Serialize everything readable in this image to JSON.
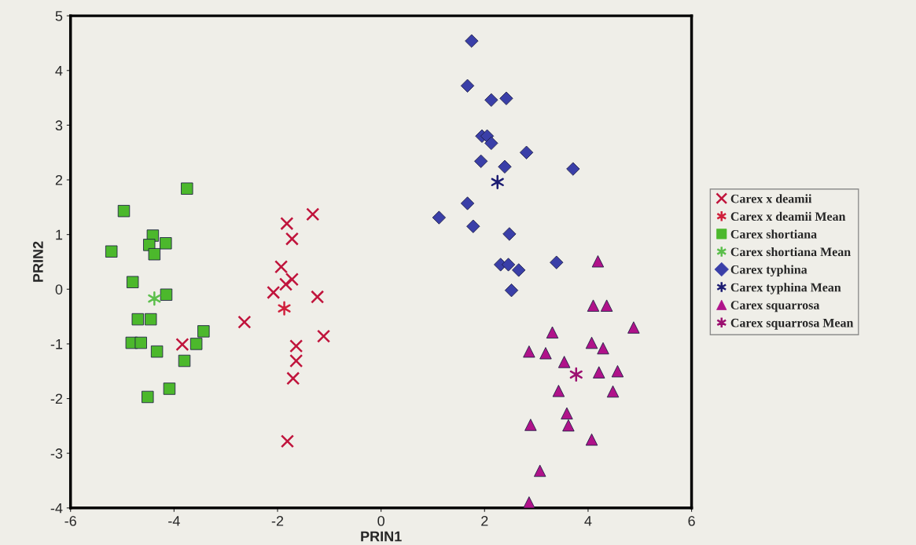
{
  "chart_data": {
    "type": "scatter",
    "xlabel": "PRIN1",
    "ylabel": "PRIN2",
    "xlim": [
      -6,
      6
    ],
    "ylim": [
      -4,
      5
    ],
    "xticks": [
      -6,
      -4,
      -2,
      0,
      2,
      4,
      6
    ],
    "yticks": [
      -4,
      -3,
      -2,
      -1,
      0,
      1,
      2,
      3,
      4,
      5
    ],
    "grid": false,
    "legend": "right",
    "series": [
      {
        "name": "Carex x deamii",
        "color": "#c0143c",
        "marker": "cross",
        "x": [
          -1.32,
          -1.82,
          -1.72,
          -1.93,
          -1.72,
          -1.84,
          -2.08,
          -1.23,
          -2.64,
          -1.11,
          -3.84,
          -1.64,
          -1.64,
          -1.7,
          -1.81
        ],
        "values": [
          1.37,
          1.2,
          0.92,
          0.41,
          0.18,
          0.09,
          -0.06,
          -0.14,
          -0.6,
          -0.86,
          -1.01,
          -1.04,
          -1.31,
          -1.63,
          -2.78
        ]
      },
      {
        "name": "Carex x deamii Mean",
        "color": "#d0203c",
        "x": [
          -1.87
        ],
        "values": [
          -0.35
        ]
      },
      {
        "name": "Carex shortiana",
        "color": "#4cb82c",
        "marker": "square",
        "x": [
          -3.75,
          -4.97,
          -5.21,
          -4.41,
          -4.16,
          -4.48,
          -4.38,
          -4.8,
          -4.15,
          -4.7,
          -4.45,
          -4.82,
          -4.64,
          -3.43,
          -3.57,
          -4.33,
          -3.8,
          -4.09,
          -4.51
        ],
        "values": [
          1.84,
          1.43,
          0.69,
          0.98,
          0.84,
          0.81,
          0.64,
          0.13,
          -0.1,
          -0.55,
          -0.55,
          -0.98,
          -0.98,
          -0.77,
          -1.0,
          -1.14,
          -1.31,
          -1.82,
          -1.97
        ]
      },
      {
        "name": "Carex shortiana Mean",
        "color": "#5cbf4c",
        "x": [
          -4.38
        ],
        "values": [
          -0.17
        ]
      },
      {
        "name": "Carex typhina",
        "color": "#3a3fa8",
        "marker": "diamond",
        "x": [
          1.75,
          1.67,
          2.13,
          2.42,
          1.95,
          2.05,
          2.13,
          2.81,
          1.93,
          2.39,
          3.71,
          1.67,
          1.12,
          1.78,
          2.48,
          3.39,
          2.31,
          2.46,
          2.66,
          2.52
        ],
        "values": [
          4.54,
          3.72,
          3.46,
          3.49,
          2.8,
          2.8,
          2.67,
          2.5,
          2.34,
          2.24,
          2.2,
          1.57,
          1.31,
          1.15,
          1.01,
          0.49,
          0.45,
          0.45,
          0.35,
          -0.02
        ]
      },
      {
        "name": "Carex typhina Mean",
        "color": "#1c1c72",
        "x": [
          2.25
        ],
        "values": [
          1.96
        ]
      },
      {
        "name": "Carex squarrosa",
        "color": "#b0128a",
        "marker": "triangle",
        "x": [
          4.19,
          4.1,
          4.36,
          4.88,
          3.31,
          2.86,
          3.18,
          4.07,
          4.29,
          3.54,
          4.21,
          4.57,
          3.43,
          4.48,
          3.59,
          3.62,
          2.89,
          4.07,
          3.07,
          2.86
        ],
        "values": [
          0.51,
          -0.3,
          -0.3,
          -0.7,
          -0.79,
          -1.14,
          -1.17,
          -0.98,
          -1.08,
          -1.33,
          -1.52,
          -1.5,
          -1.86,
          -1.87,
          -2.27,
          -2.49,
          -2.48,
          -2.75,
          -3.32,
          -3.9
        ]
      },
      {
        "name": "Carex squarrosa Mean",
        "color": "#9c1070",
        "x": [
          3.77
        ],
        "values": [
          -1.56
        ]
      }
    ]
  }
}
